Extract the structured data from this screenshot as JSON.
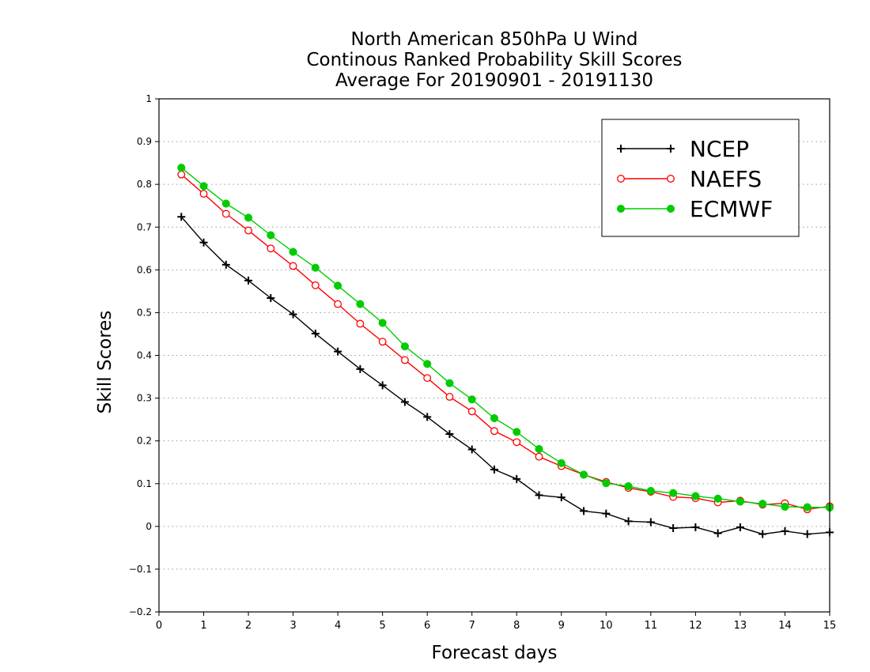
{
  "chart_data": {
    "type": "line",
    "title": [
      "North American 850hPa U Wind",
      "Continous Ranked Probability Skill Scores",
      "Average For 20190901 - 20191130"
    ],
    "xlabel": "Forecast days",
    "ylabel": "Skill Scores",
    "xlim": [
      0,
      15
    ],
    "ylim": [
      -0.2,
      1
    ],
    "x_ticks": [
      "0",
      "1",
      "2",
      "3",
      "4",
      "5",
      "6",
      "7",
      "8",
      "9",
      "10",
      "11",
      "12",
      "13",
      "14",
      "15"
    ],
    "y_ticks": [
      "1",
      "0.9",
      "0.8",
      "0.7",
      "0.6",
      "0.5",
      "0.4",
      "0.3",
      "0.2",
      "0.1",
      "0",
      "−0.1",
      "−0.2"
    ],
    "y_tick_values": [
      1,
      0.9,
      0.8,
      0.7,
      0.6,
      0.5,
      0.4,
      0.3,
      0.2,
      0.1,
      0,
      -0.1,
      -0.2
    ],
    "grid": "horizontal dotted",
    "legend_position": "top-right",
    "x": [
      0.5,
      1.0,
      1.5,
      2.0,
      2.5,
      3.0,
      3.5,
      4.0,
      4.5,
      5.0,
      5.5,
      6.0,
      6.5,
      7.0,
      7.5,
      8.0,
      8.5,
      9.0,
      9.5,
      10.0,
      10.5,
      11.0,
      11.5,
      12.0,
      12.5,
      13.0,
      13.5,
      14.0,
      14.5,
      15.0
    ],
    "series": [
      {
        "name": "NCEP",
        "color": "#000000",
        "marker": "plus",
        "values": [
          0.724,
          0.664,
          0.612,
          0.575,
          0.534,
          0.496,
          0.451,
          0.409,
          0.368,
          0.33,
          0.291,
          0.256,
          0.216,
          0.18,
          0.133,
          0.111,
          0.073,
          0.068,
          0.036,
          0.03,
          0.012,
          0.01,
          -0.004,
          -0.002,
          -0.016,
          -0.002,
          -0.018,
          -0.011,
          -0.018,
          -0.014
        ]
      },
      {
        "name": "NAEFS",
        "color": "#ff0000",
        "marker": "open-circle",
        "values": [
          0.823,
          0.778,
          0.731,
          0.692,
          0.65,
          0.609,
          0.564,
          0.52,
          0.474,
          0.432,
          0.389,
          0.347,
          0.303,
          0.269,
          0.223,
          0.197,
          0.163,
          0.141,
          0.121,
          0.104,
          0.09,
          0.081,
          0.069,
          0.066,
          0.056,
          0.06,
          0.051,
          0.054,
          0.04,
          0.047
        ]
      },
      {
        "name": "ECMWF",
        "color": "#00cc00",
        "marker": "filled-circle",
        "values": [
          0.839,
          0.796,
          0.755,
          0.722,
          0.681,
          0.642,
          0.605,
          0.563,
          0.52,
          0.476,
          0.421,
          0.38,
          0.335,
          0.297,
          0.253,
          0.221,
          0.181,
          0.148,
          0.121,
          0.101,
          0.094,
          0.083,
          0.078,
          0.071,
          0.065,
          0.058,
          0.053,
          0.046,
          0.045,
          0.044
        ]
      }
    ]
  }
}
